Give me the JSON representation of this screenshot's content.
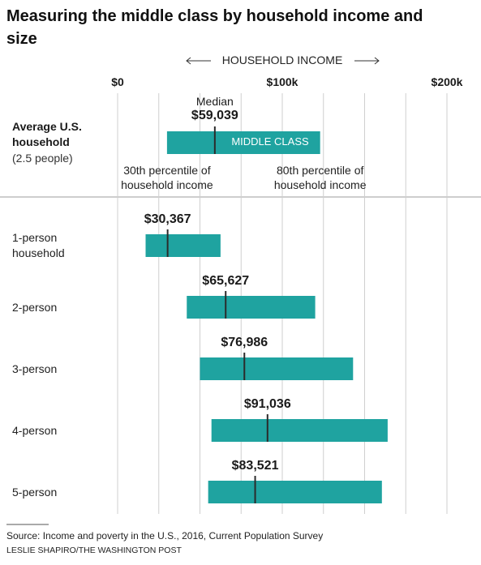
{
  "chart_data": {
    "type": "range_bar",
    "title": "Measuring the middle class by household income and size",
    "x_label": "HOUSEHOLD INCOME",
    "xlim": [
      0,
      200000
    ],
    "xticks": [
      {
        "value": 0,
        "label": "$0"
      },
      {
        "value": 25000,
        "label": null
      },
      {
        "value": 50000,
        "label": null
      },
      {
        "value": 75000,
        "label": null
      },
      {
        "value": 100000,
        "label": "$100k"
      },
      {
        "value": 125000,
        "label": null
      },
      {
        "value": 150000,
        "label": null
      },
      {
        "value": 175000,
        "label": null
      },
      {
        "value": 200000,
        "label": "$200k"
      }
    ],
    "grid": true,
    "color": "#1fa3a0",
    "median_color": "#2b2b2b",
    "reference": {
      "label": "Average U.S. household",
      "sublabel": "(2.5 people)",
      "low": 30000,
      "high": 123000,
      "median": 59039,
      "median_label": "$59,039",
      "median_title": "Median",
      "band_label": "MIDDLE CLASS",
      "low_label": "30th percentile of household income",
      "high_label": "80th percentile of household income"
    },
    "categories": [
      "1-person household",
      "2-person",
      "3-person",
      "4-person",
      "5-person"
    ],
    "low": [
      17000,
      42000,
      50000,
      57000,
      55000
    ],
    "high": [
      62500,
      120000,
      143000,
      164000,
      160500
    ],
    "median": [
      30367,
      65627,
      76986,
      91036,
      83521
    ],
    "value_labels": [
      "$30,367",
      "$65,627",
      "$76,986",
      "$91,036",
      "$83,521"
    ],
    "source": "Source: Income and poverty in the U.S., 2016, Current Population Survey",
    "credit": "LESLIE SHAPIRO/THE WASHINGTON POST"
  }
}
